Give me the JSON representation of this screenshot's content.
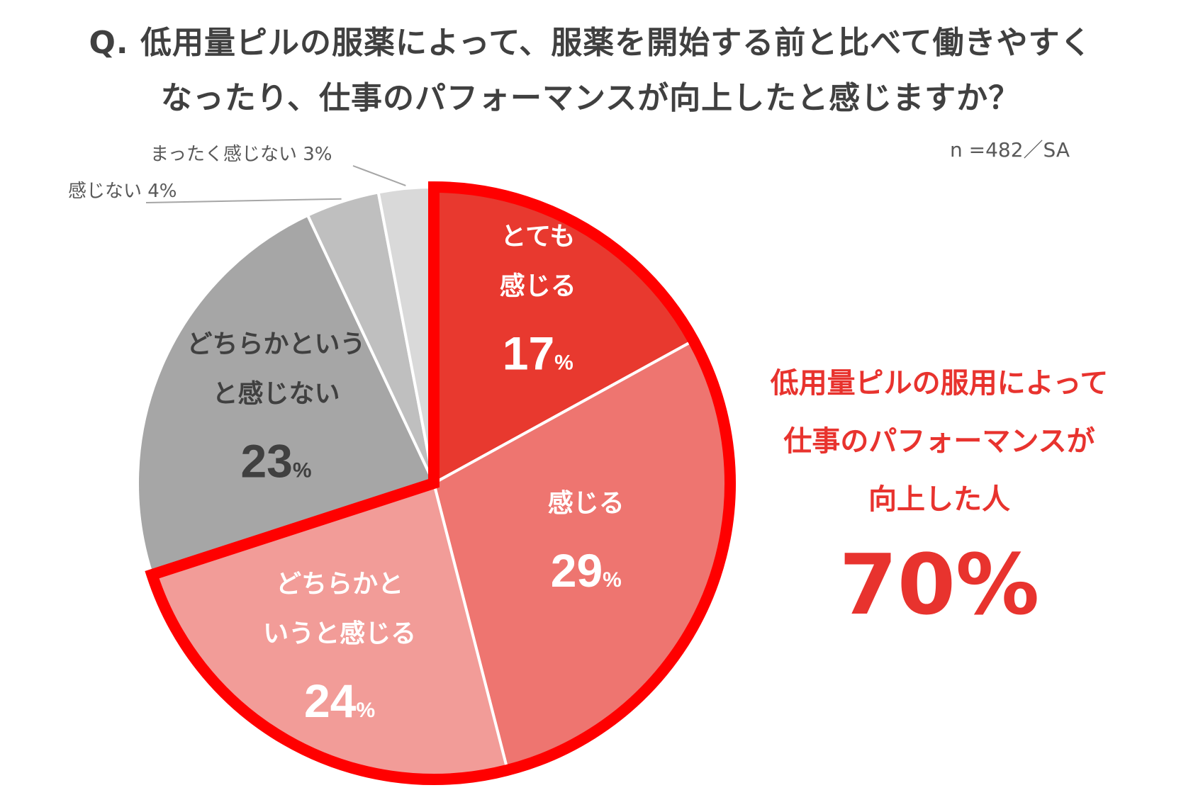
{
  "title": {
    "line1": "Q.  低用量ピルの服薬によって、服薬を開始する前と比べて働きやすく",
    "line2": "なったり、仕事のパフォーマンスが向上したと感じますか？"
  },
  "sample_note": "n =482／SA",
  "callout": {
    "line1": "低用量ピルの服用によって",
    "line2": "仕事のパフォーマンスが",
    "line3": "向上した人",
    "value": "70%"
  },
  "chart_data": {
    "type": "pie",
    "unit": "%",
    "slices": [
      {
        "label": [
          "とても",
          "感じる"
        ],
        "value": 17,
        "value_text": "17",
        "color": "#e8392f",
        "text_color": "#ffffff",
        "inside": true
      },
      {
        "label": [
          "感じる"
        ],
        "value": 29,
        "value_text": "29",
        "color": "#ee7570",
        "text_color": "#ffffff",
        "inside": true
      },
      {
        "label": [
          "どちらかと",
          "いうと感じる"
        ],
        "value": 24,
        "value_text": "24",
        "color": "#f29c98",
        "text_color": "#ffffff",
        "inside": true
      },
      {
        "label": [
          "どちらかという",
          "と感じない"
        ],
        "value": 23,
        "value_text": "23",
        "color": "#a6a6a6",
        "text_color": "#404040",
        "inside": true
      },
      {
        "label": [
          "感じない 4%"
        ],
        "value": 4,
        "value_text": "4",
        "color": "#bfbfbf",
        "text_color": "#595959",
        "inside": false
      },
      {
        "label": [
          "まったく感じない 3%"
        ],
        "value": 3,
        "value_text": "3",
        "color": "#d9d9d9",
        "text_color": "#595959",
        "inside": false
      }
    ],
    "highlight": {
      "slices": [
        0,
        1,
        2
      ],
      "color": "#ff0000",
      "total_percent": 70
    }
  }
}
